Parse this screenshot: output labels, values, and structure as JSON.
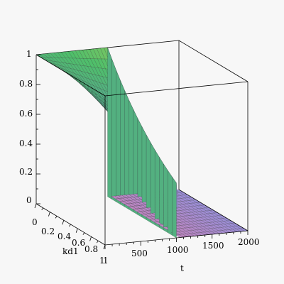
{
  "chart_data": {
    "type": "surface3d",
    "title": "",
    "x_axis": {
      "label": "t",
      "range": [
        0,
        2000
      ],
      "ticks": [
        500,
        1000,
        1500,
        2000
      ]
    },
    "y_axis": {
      "label": "kd1",
      "range": [
        0,
        1
      ],
      "ticks": [
        "0",
        "0.2",
        "0.4",
        "0.6",
        "0.8",
        "1"
      ]
    },
    "z_axis": {
      "label": "",
      "range": [
        0,
        1
      ],
      "ticks": [
        "0",
        "0.2",
        "0.4",
        "0.6",
        "0.8",
        "1"
      ]
    },
    "t_axis_near_end_label": "1",
    "surface_description": "value 1 at t=0; exponential decay in t with rate increasing in kd1; abrupt drop to 0 at t=1000",
    "surface_samples": {
      "t": [
        0,
        250,
        500,
        750,
        999,
        1000,
        1500,
        2000
      ],
      "kd1": [
        0,
        0.5,
        1
      ],
      "z": [
        [
          1,
          1,
          1,
          1,
          1,
          0,
          0,
          0
        ],
        [
          1,
          0.88,
          0.78,
          0.69,
          0.61,
          0,
          0,
          0
        ],
        [
          1,
          0.78,
          0.61,
          0.47,
          0.37,
          0,
          0,
          0
        ]
      ]
    },
    "colormap": [
      "#ff6677",
      "#d77fb0",
      "#9a8fd8",
      "#5a9aa0",
      "#4fbf6a",
      "#c9cf55"
    ],
    "grid": false,
    "legend": "none"
  }
}
